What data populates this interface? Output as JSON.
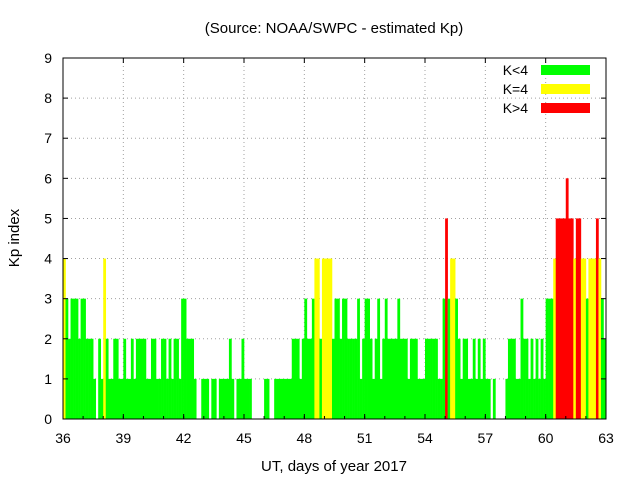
{
  "chart_data": {
    "type": "bar",
    "title": "(Source: NOAA/SWPC - estimated Kp)",
    "xlabel": "UT, days of year 2017",
    "ylabel": "Kp index",
    "xlim": [
      36,
      63
    ],
    "ylim": [
      0,
      9
    ],
    "x_ticks": [
      "36",
      "39",
      "42",
      "45",
      "48",
      "51",
      "54",
      "57",
      "60",
      "63"
    ],
    "y_ticks": [
      "0",
      "1",
      "2",
      "3",
      "4",
      "5",
      "6",
      "7",
      "8",
      "9"
    ],
    "grid": true,
    "legend_position": "top-right",
    "bar_width_days": 0.125,
    "x_start": 36,
    "series": [
      {
        "name": "K<4",
        "color": "#00ff00"
      },
      {
        "name": "K=4",
        "color": "#ffff00"
      },
      {
        "name": "K>4",
        "color": "#ff0000"
      }
    ],
    "days": [
      {
        "day": 36,
        "values": [
          4,
          3,
          2,
          3,
          3,
          3,
          2,
          3
        ]
      },
      {
        "day": 37,
        "values": [
          3,
          2,
          2,
          2,
          1,
          0,
          2,
          1
        ]
      },
      {
        "day": 38,
        "values": [
          4,
          2,
          1,
          1,
          2,
          2,
          1,
          1
        ]
      },
      {
        "day": 39,
        "values": [
          2,
          1,
          1,
          2,
          1,
          2,
          2,
          2
        ]
      },
      {
        "day": 40,
        "values": [
          2,
          1,
          1,
          2,
          2,
          1,
          1,
          2
        ]
      },
      {
        "day": 41,
        "values": [
          2,
          1,
          2,
          1,
          2,
          2,
          1,
          3
        ]
      },
      {
        "day": 42,
        "values": [
          3,
          2,
          2,
          2,
          1,
          0,
          0,
          1
        ]
      },
      {
        "day": 43,
        "values": [
          1,
          1,
          0,
          1,
          1,
          0,
          1,
          1
        ]
      },
      {
        "day": 44,
        "values": [
          1,
          1,
          2,
          1,
          0,
          1,
          1,
          2
        ]
      },
      {
        "day": 45,
        "values": [
          1,
          1,
          1,
          0,
          0,
          0,
          0,
          0
        ]
      },
      {
        "day": 46,
        "values": [
          1,
          1,
          0,
          0,
          1,
          1,
          1,
          1
        ]
      },
      {
        "day": 47,
        "values": [
          1,
          1,
          1,
          2,
          2,
          2,
          1,
          2
        ]
      },
      {
        "day": 48,
        "values": [
          3,
          2,
          2,
          3,
          4,
          4,
          2,
          4
        ]
      },
      {
        "day": 49,
        "values": [
          4,
          4,
          4,
          2,
          3,
          3,
          2,
          3
        ]
      },
      {
        "day": 50,
        "values": [
          3,
          2,
          2,
          2,
          2,
          3,
          1,
          2
        ]
      },
      {
        "day": 51,
        "values": [
          3,
          3,
          2,
          1,
          2,
          3,
          1,
          2
        ]
      },
      {
        "day": 52,
        "values": [
          3,
          2,
          2,
          2,
          2,
          3,
          2,
          2
        ]
      },
      {
        "day": 53,
        "values": [
          2,
          1,
          2,
          2,
          2,
          1,
          1,
          1
        ]
      },
      {
        "day": 54,
        "values": [
          2,
          2,
          2,
          2,
          2,
          1,
          1,
          3
        ]
      },
      {
        "day": 55,
        "values": [
          5,
          3,
          4,
          4,
          3,
          2,
          1,
          2
        ]
      },
      {
        "day": 56,
        "values": [
          2,
          1,
          1,
          2,
          1,
          2,
          1,
          2
        ]
      },
      {
        "day": 57,
        "values": [
          1,
          1,
          0,
          1,
          0,
          0,
          0,
          0
        ]
      },
      {
        "day": 58,
        "values": [
          1,
          2,
          2,
          2,
          1,
          1,
          3,
          2
        ]
      },
      {
        "day": 59,
        "values": [
          2,
          1,
          2,
          1,
          2,
          1,
          2,
          1
        ]
      },
      {
        "day": 60,
        "values": [
          3,
          3,
          3,
          4,
          5,
          5,
          5,
          5
        ]
      },
      {
        "day": 61,
        "values": [
          6,
          5,
          5,
          4,
          5,
          5,
          4,
          4
        ]
      },
      {
        "day": 62,
        "values": [
          3,
          4,
          4,
          4,
          5,
          4,
          3,
          2
        ]
      }
    ]
  }
}
